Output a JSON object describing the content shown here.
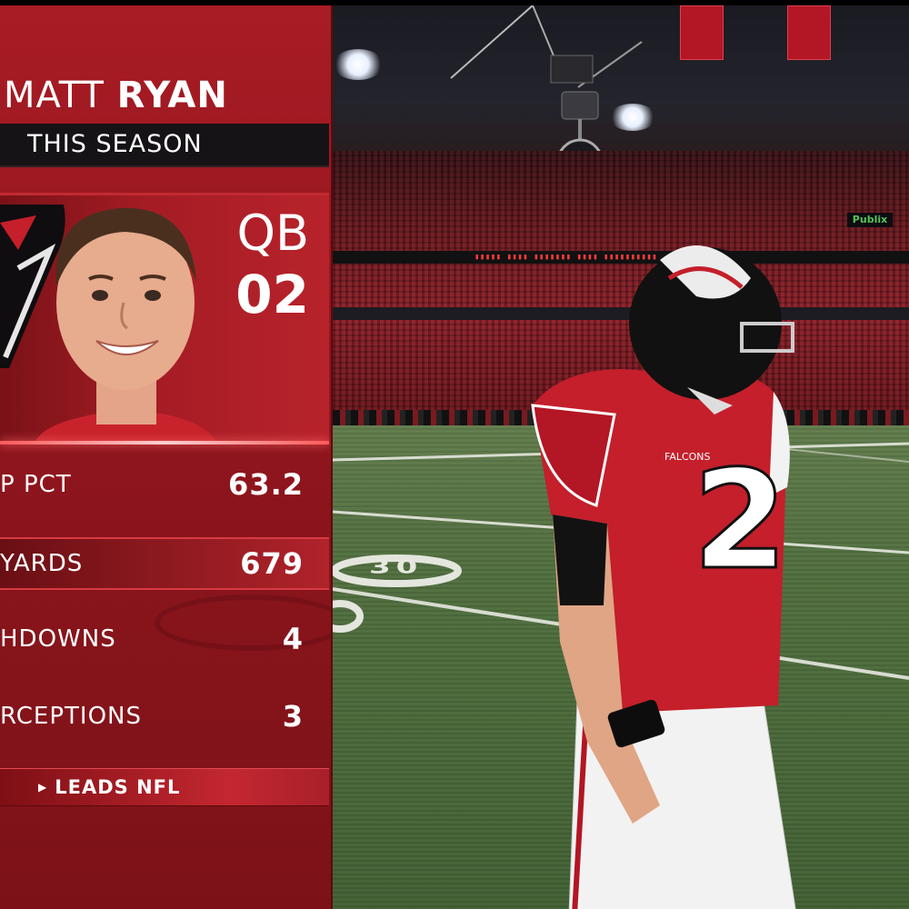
{
  "graphic": {
    "player_first_name": "MATT",
    "player_last_name": "RYAN",
    "period_label": "THIS SEASON",
    "position": "QB",
    "jersey_number": "02",
    "stats": [
      {
        "label": "P PCT",
        "value": "63.2",
        "highlighted": false
      },
      {
        "label": "YARDS",
        "value": "679",
        "highlighted": true
      },
      {
        "label": "HDOWNS",
        "value": "4",
        "highlighted": false
      },
      {
        "label": "RCEPTIONS",
        "value": "3",
        "highlighted": false
      }
    ],
    "footer_label": "LEADS NFL"
  },
  "scene": {
    "player_jersey_number": "2",
    "jersey_wordmark": "FALCONS",
    "board_text": "Publix",
    "field_number": "30"
  },
  "colors": {
    "team_red": "#a81c25",
    "dark_bar": "#151315",
    "field_green": "#4f6d3d"
  }
}
